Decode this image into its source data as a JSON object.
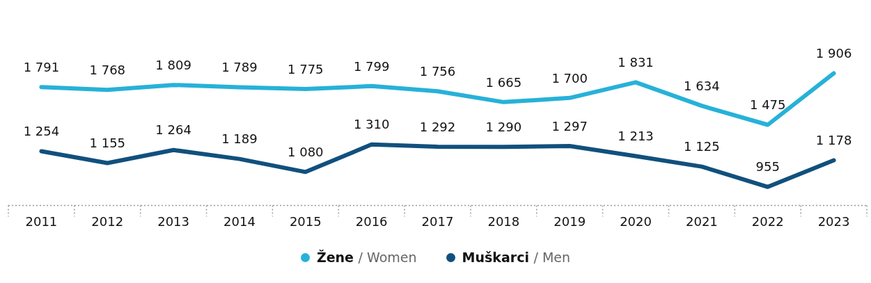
{
  "chart_data": {
    "type": "line",
    "categories": [
      "2011",
      "2012",
      "2013",
      "2014",
      "2015",
      "2016",
      "2017",
      "2018",
      "2019",
      "2020",
      "2021",
      "2022",
      "2023"
    ],
    "series": [
      {
        "name": "Žene / Women",
        "color": "#27b1d9",
        "values": [
          1791,
          1768,
          1809,
          1789,
          1775,
          1799,
          1756,
          1665,
          1700,
          1831,
          1634,
          1475,
          1906
        ]
      },
      {
        "name": "Muškarci / Men",
        "color": "#11507d",
        "values": [
          1254,
          1155,
          1264,
          1189,
          1080,
          1310,
          1292,
          1290,
          1297,
          1213,
          1125,
          955,
          1178
        ]
      }
    ],
    "data_labels": true,
    "grid": false,
    "legend": "bottom",
    "marker": "none",
    "line_style": "solid"
  }
}
